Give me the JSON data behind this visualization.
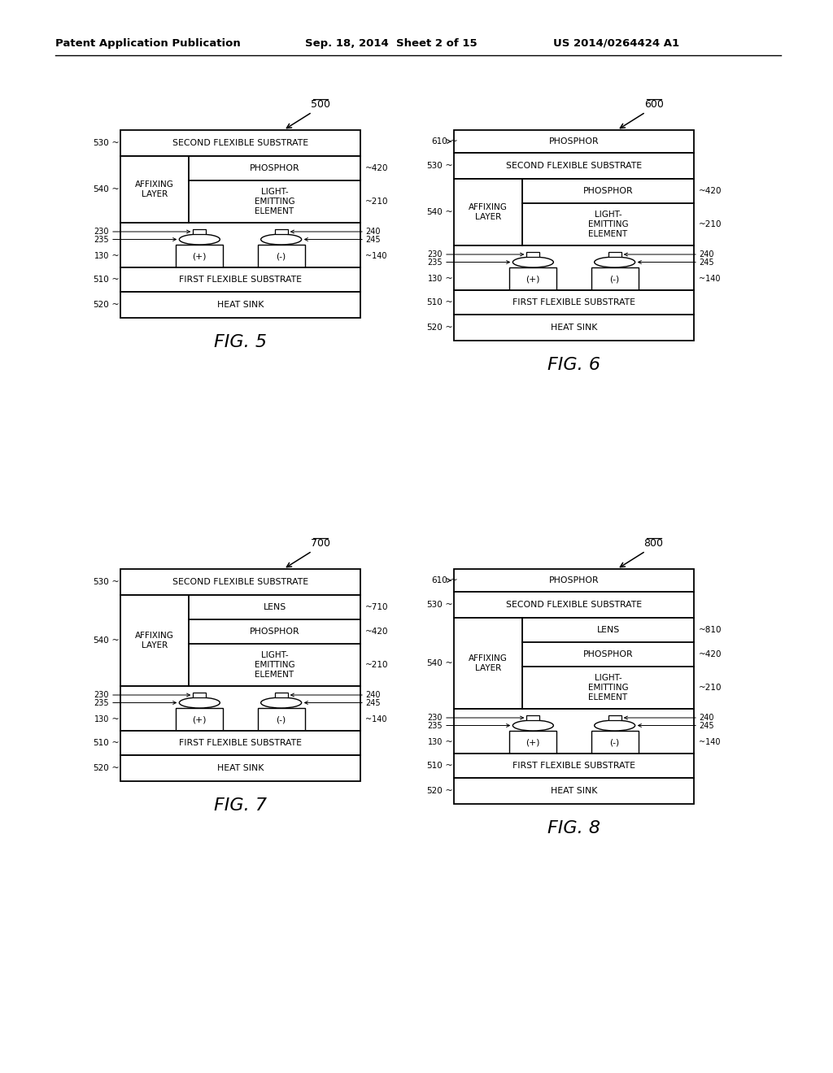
{
  "header_left": "Patent Application Publication",
  "header_mid": "Sep. 18, 2014  Sheet 2 of 15",
  "header_right": "US 2014/0264424 A1",
  "background": "#ffffff",
  "fig_labels": [
    "500",
    "600",
    "700",
    "800"
  ],
  "fig_captions": [
    "FIG. 5",
    "FIG. 6",
    "FIG. 7",
    "FIG. 8"
  ]
}
